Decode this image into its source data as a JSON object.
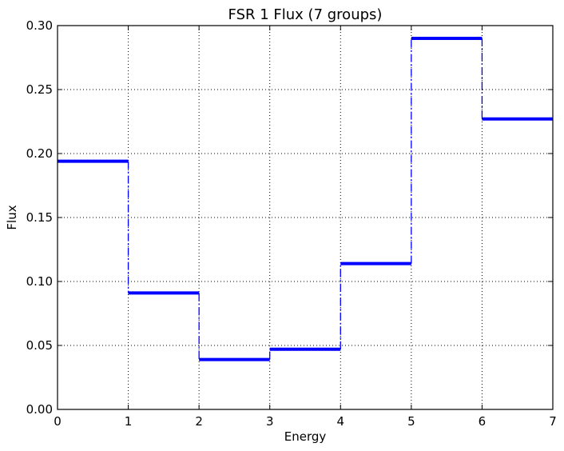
{
  "chart_data": {
    "type": "line",
    "subtype": "step",
    "title": "FSR 1 Flux (7 groups)",
    "xlabel": "Energy",
    "ylabel": "Flux",
    "xlim": [
      0,
      7
    ],
    "ylim": [
      0.0,
      0.3
    ],
    "grid": true,
    "x_ticks": [
      "0",
      "1",
      "2",
      "3",
      "4",
      "5",
      "6",
      "7"
    ],
    "y_ticks": [
      "0.00",
      "0.05",
      "0.10",
      "0.15",
      "0.20",
      "0.25",
      "0.30"
    ],
    "series": [
      {
        "name": "FSR 1 Flux",
        "color": "#0000ff",
        "bin_edges": [
          0,
          1,
          2,
          3,
          4,
          5,
          6,
          7
        ],
        "values": [
          0.194,
          0.091,
          0.039,
          0.047,
          0.114,
          0.29,
          0.227
        ]
      }
    ]
  }
}
